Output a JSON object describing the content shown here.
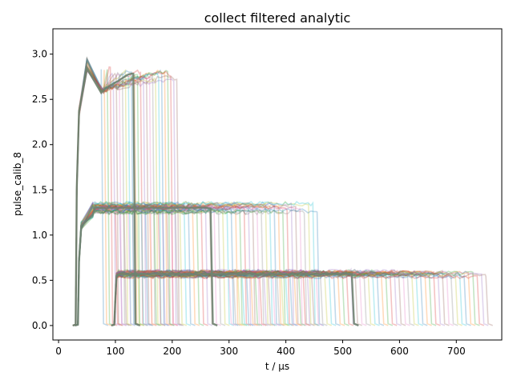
{
  "chart_data": {
    "type": "line",
    "title": "collect filtered analytic",
    "xlabel": "t / µs",
    "ylabel": "pulse_calib_8",
    "xlim": [
      -10,
      780
    ],
    "ylim": [
      -0.16,
      3.28
    ],
    "x_ticks": [
      0,
      100,
      200,
      300,
      400,
      500,
      600,
      700
    ],
    "y_ticks": [
      0.0,
      0.5,
      1.0,
      1.5,
      2.0,
      2.5,
      3.0
    ],
    "x_tick_labels": [
      "0",
      "100",
      "200",
      "300",
      "400",
      "500",
      "600",
      "700"
    ],
    "y_tick_labels": [
      "0.0",
      "0.5",
      "1.0",
      "1.5",
      "2.0",
      "2.5",
      "3.0"
    ],
    "grid": false,
    "legend": "none",
    "series_colors": [
      "#1f77b4",
      "#ff7f0e",
      "#2ca02c",
      "#d62728",
      "#9467bd",
      "#8c564b",
      "#e377c2",
      "#7f7f7f",
      "#bcbd22",
      "#17becf"
    ],
    "mean_color": "#6f8270",
    "groups": [
      {
        "pulse_start": 30,
        "plateau_end_first": 75,
        "plateau_end_last": 208,
        "peak_x": 50,
        "peak_y": 2.88,
        "dip_x": 75,
        "dip_y": 2.6,
        "plateau_level": 2.78,
        "plateau_spread": 0.14,
        "traces": 26
      },
      {
        "pulse_start": 34,
        "plateau_end_first": 100,
        "plateau_end_last": 455,
        "peak_x": 60,
        "peak_y": 1.28,
        "plateau_level": 1.3,
        "plateau_spread": 0.1,
        "traces": 48
      },
      {
        "pulse_start": 98,
        "plateau_end_first": 300,
        "plateau_end_last": 752,
        "plateau_level": 0.57,
        "plateau_spread": 0.06,
        "traces": 60
      }
    ]
  }
}
